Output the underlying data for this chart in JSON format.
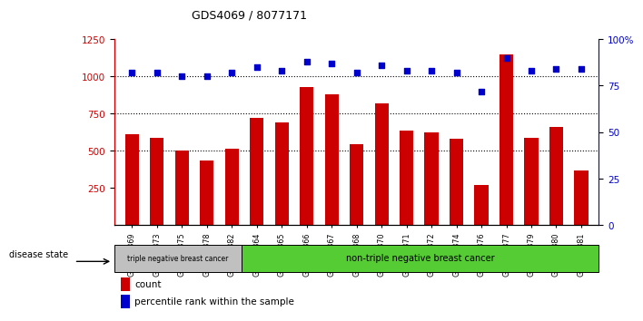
{
  "title": "GDS4069 / 8077171",
  "categories": [
    "GSM678369",
    "GSM678373",
    "GSM678375",
    "GSM678378",
    "GSM678382",
    "GSM678364",
    "GSM678365",
    "GSM678366",
    "GSM678367",
    "GSM678368",
    "GSM678370",
    "GSM678371",
    "GSM678372",
    "GSM678374",
    "GSM678376",
    "GSM678377",
    "GSM678379",
    "GSM678380",
    "GSM678381"
  ],
  "bar_values": [
    610,
    590,
    500,
    435,
    515,
    720,
    690,
    930,
    880,
    545,
    820,
    635,
    625,
    580,
    270,
    1150,
    590,
    660,
    370
  ],
  "dot_values": [
    82,
    82,
    80,
    80,
    82,
    85,
    83,
    88,
    87,
    82,
    86,
    83,
    83,
    82,
    72,
    90,
    83,
    84,
    84
  ],
  "bar_color": "#cc0000",
  "dot_color": "#0000cc",
  "ylim_left": [
    0,
    1250
  ],
  "ylim_right": [
    0,
    100
  ],
  "yticks_left": [
    250,
    500,
    750,
    1000,
    1250
  ],
  "yticks_right": [
    0,
    25,
    50,
    75,
    100
  ],
  "ytick_labels_right": [
    "0",
    "25",
    "50",
    "75",
    "100%"
  ],
  "grid_values": [
    500,
    750,
    1000
  ],
  "group1_label": "triple negative breast cancer",
  "group2_label": "non-triple negative breast cancer",
  "group1_count": 5,
  "group2_count": 14,
  "disease_state_label": "disease state",
  "legend_count_label": "count",
  "legend_pct_label": "percentile rank within the sample",
  "bg_color": "#ffffff",
  "plot_bg_color": "#ffffff",
  "group1_color": "#c0c0c0",
  "group2_color": "#55cc33"
}
